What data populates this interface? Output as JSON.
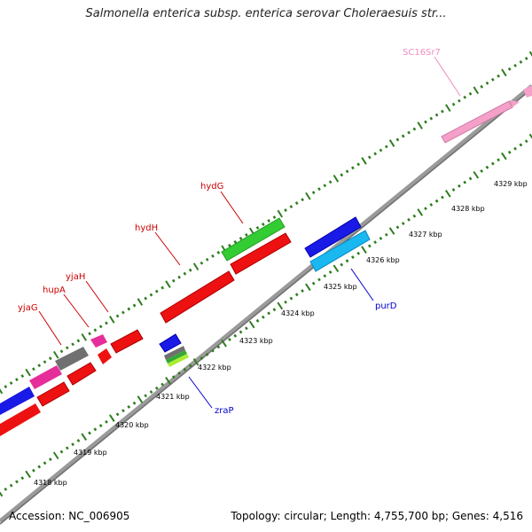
{
  "title": "Salmonella enterica subsp. enterica serovar Choleraesuis str...",
  "footer": {
    "accession": "Accession: NC_006905",
    "summary": "Topology: circular; Length: 4,755,700 bp; Genes: 4,516"
  },
  "colors": {
    "backbone": "#8a8a8a",
    "ticks": "#2e7d1e",
    "red": "#ee1111",
    "green": "#33cc33",
    "blue": "#1a1ae6",
    "cyan": "#1ab8f0",
    "pink": "#f4a0c8",
    "magenta": "#e62e9a",
    "gray": "#707070"
  },
  "gene_labels": [
    {
      "name": "SC16Sr7",
      "color": "#f08cc0"
    },
    {
      "name": "hydG",
      "color": "#cc0000"
    },
    {
      "name": "hydH",
      "color": "#cc0000"
    },
    {
      "name": "yjaH",
      "color": "#cc0000"
    },
    {
      "name": "hupA",
      "color": "#cc0000"
    },
    {
      "name": "yjaG",
      "color": "#cc0000"
    },
    {
      "name": "purD",
      "color": "#0000cc"
    },
    {
      "name": "zraP",
      "color": "#0000cc"
    }
  ],
  "kbp_ticks": [
    "4318 kbp",
    "4319 kbp",
    "4320 kbp",
    "4321 kbp",
    "4322 kbp",
    "4323 kbp",
    "4324 kbp",
    "4325 kbp",
    "4326 kbp",
    "4327 kbp",
    "4328 kbp",
    "4329 kbp"
  ]
}
